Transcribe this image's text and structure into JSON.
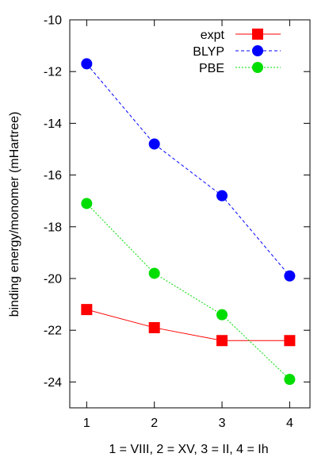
{
  "chart_data": {
    "type": "line",
    "title": "",
    "xlabel": "1 = VIII, 2 = XV, 3 = II, 4 = Ih",
    "ylabel": "binding energy/monomer (mHartree)",
    "x": [
      1,
      2,
      3,
      4
    ],
    "x_ticks": [
      1,
      2,
      3,
      4
    ],
    "y_ticks": [
      -10,
      -12,
      -14,
      -16,
      -18,
      -20,
      -22,
      -24
    ],
    "xlim": [
      0.75,
      4.3
    ],
    "ylim": [
      -25,
      -10
    ],
    "grid": false,
    "legend_position": "top-right",
    "series": [
      {
        "name": "expt",
        "values": [
          -21.2,
          -21.9,
          -22.4,
          -22.4
        ],
        "color": "#ff0000",
        "marker": "square",
        "line_style": "solid"
      },
      {
        "name": "BLYP",
        "values": [
          -11.7,
          -14.8,
          -16.8,
          -19.9
        ],
        "color": "#0000ff",
        "marker": "circle",
        "line_style": "dashed"
      },
      {
        "name": "PBE",
        "values": [
          -17.1,
          -19.8,
          -21.4,
          -23.9
        ],
        "color": "#00dd00",
        "marker": "circle",
        "line_style": "dotted"
      }
    ]
  }
}
